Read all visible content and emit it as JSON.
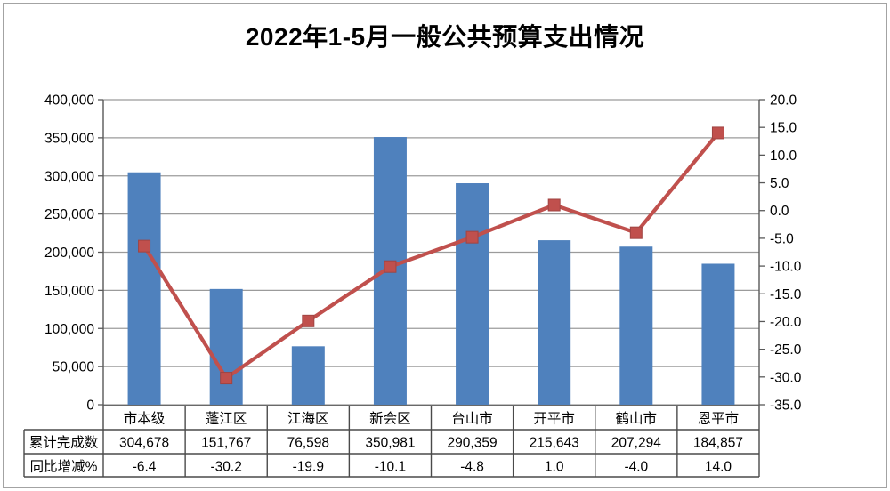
{
  "window": {
    "title": "2022年1-5月一般公共预算支出情况"
  },
  "chart_data": {
    "type": "bar+line combo (dual axis)",
    "title": "2022年1-5月一般公共预算支出情况",
    "categories": [
      "市本级",
      "蓬江区",
      "江海区",
      "新会区",
      "台山市",
      "开平市",
      "鹤山市",
      "恩平市"
    ],
    "series": [
      {
        "name": "累计完成数",
        "type": "bar",
        "axis": "left",
        "values": [
          304678,
          151767,
          76598,
          350981,
          290359,
          215643,
          207294,
          184857
        ]
      },
      {
        "name": "同比增减%",
        "type": "line",
        "axis": "right",
        "values": [
          -6.4,
          -30.2,
          -19.9,
          -10.1,
          -4.8,
          1.0,
          -4.0,
          14.0
        ]
      }
    ],
    "left_axis": {
      "min": 0,
      "max": 400000,
      "step": 50000,
      "tick_labels": [
        "0",
        "50,000",
        "100,000",
        "150,000",
        "200,000",
        "250,000",
        "300,000",
        "350,000",
        "400,000"
      ]
    },
    "right_axis": {
      "min": -35,
      "max": 20,
      "step": 5,
      "tick_labels": [
        "-35.0",
        "-30.0",
        "-25.0",
        "-20.0",
        "-15.0",
        "-10.0",
        "-5.0",
        "0.0",
        "5.0",
        "10.0",
        "15.0",
        "20.0"
      ]
    },
    "grid": "horizontal gridlines aligned to left axis",
    "legend": "none",
    "data_table": {
      "row_labels": [
        "累计完成数",
        "同比增减%"
      ],
      "rows": [
        [
          "304,678",
          "151,767",
          "76,598",
          "350,981",
          "290,359",
          "215,643",
          "207,294",
          "184,857"
        ],
        [
          "-6.4",
          "-30.2",
          "-19.9",
          "-10.1",
          "-4.8",
          "1.0",
          "-4.0",
          "14.0"
        ]
      ]
    }
  },
  "colors": {
    "bar": "#4F81BD",
    "line": "#C0504D",
    "marker": "#C0504D",
    "grid": "#9B9B9B",
    "axis": "#595959",
    "table_border": "#4A4A4A",
    "frame": "#A3A3A3",
    "text": "#000000",
    "background": "#FFFFFF"
  }
}
